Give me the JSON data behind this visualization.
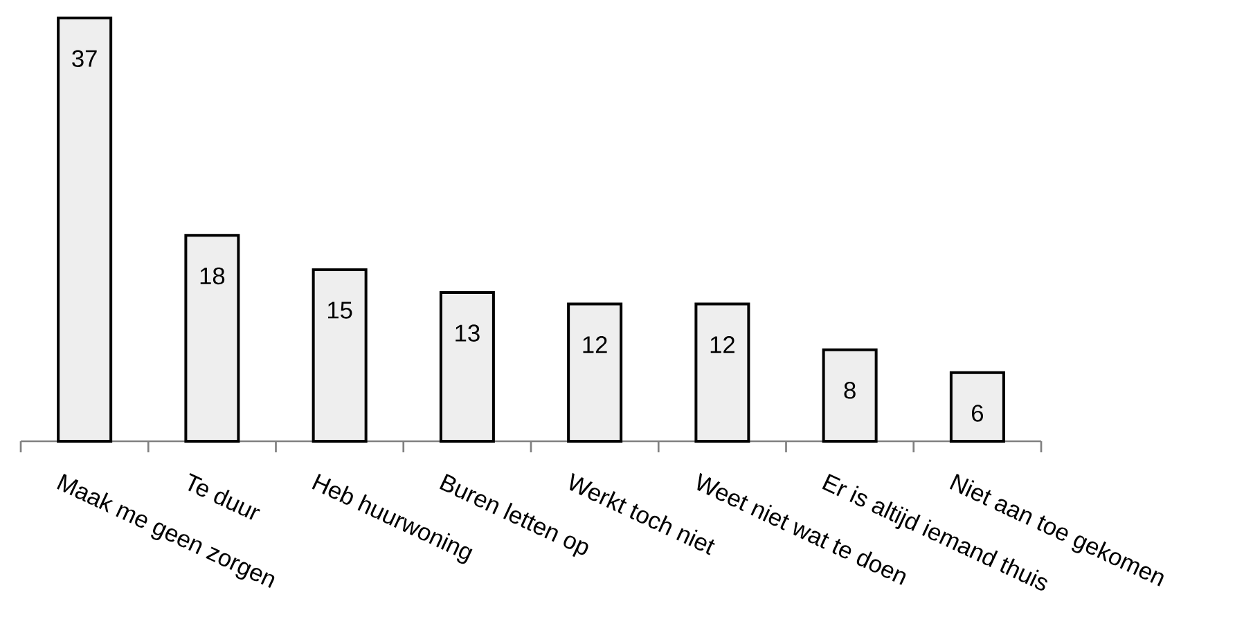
{
  "chart_data": {
    "type": "bar",
    "categories": [
      "Maak me geen zorgen",
      "Te duur",
      "Heb huurwoning",
      "Buren letten op",
      "Werkt toch niet",
      "Weet niet wat te doen",
      "Er is altijd iemand thuis",
      "Niet aan toe gekomen"
    ],
    "values": [
      37,
      18,
      15,
      13,
      12,
      12,
      8,
      6
    ],
    "color": "#eeeeee",
    "data_labels": true
  }
}
